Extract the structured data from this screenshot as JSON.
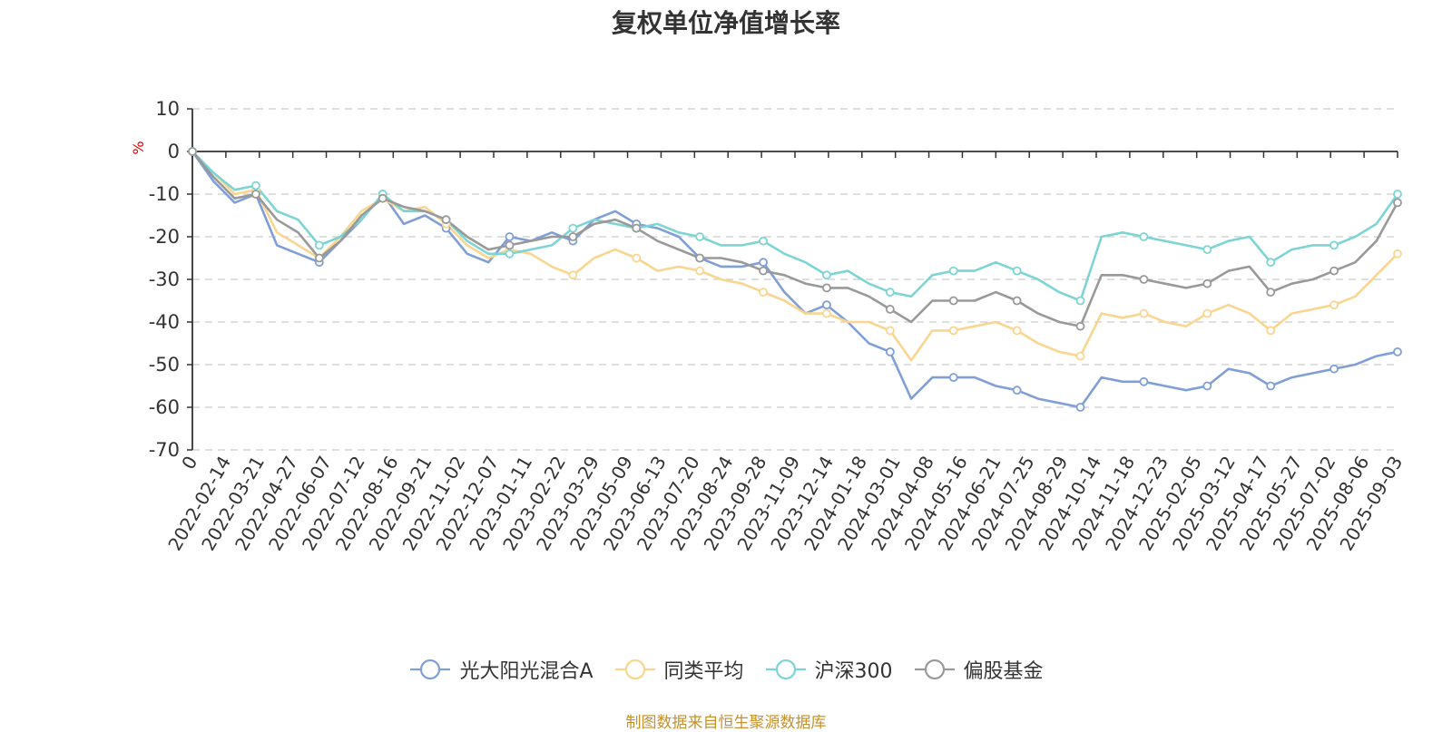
{
  "title": "复权单位净值增长率",
  "source_note": "制图数据来自恒生聚源数据库",
  "colors": {
    "fund": "#7f9fd6",
    "peer_avg": "#f9d58f",
    "hs300": "#7dd4d4",
    "equity": "#999999",
    "axis": "#333333",
    "grid": "#cccccc",
    "unit": "#e00000",
    "source": "#c8902a"
  },
  "chart_data": {
    "type": "line",
    "title": "复权单位净值增长率",
    "ylabel": "%",
    "ylim": [
      -70,
      10
    ],
    "y_ticks": [
      "10",
      "0",
      "-10",
      "-20",
      "-30",
      "-40",
      "-50",
      "-60",
      "-70"
    ],
    "x_ticks": [
      "0",
      "2022-02-14",
      "2022-03-21",
      "2022-04-27",
      "2022-06-07",
      "2022-07-12",
      "2022-08-16",
      "2022-09-21",
      "2022-11-02",
      "2022-12-07",
      "2023-01-11",
      "2023-02-22",
      "2023-03-29",
      "2023-05-09",
      "2023-06-13",
      "2023-07-20",
      "2023-08-24",
      "2023-09-28",
      "2023-11-09",
      "2023-12-14",
      "2024-01-18",
      "2024-03-01",
      "2024-04-08",
      "2024-05-16",
      "2024-06-21",
      "2024-07-25",
      "2024-08-29",
      "2024-10-14",
      "2024-11-18",
      "2024-12-23",
      "2025-02-05",
      "2025-03-12",
      "2025-04-17",
      "2025-05-27",
      "2025-07-02",
      "2025-08-06",
      "2025-09-03"
    ],
    "grid": true,
    "legend_position": "bottom-center",
    "series": [
      {
        "name": "光大阳光混合A",
        "color": "#7f9fd6",
        "values": [
          0,
          -7,
          -12,
          -10,
          -22,
          -24,
          -26,
          -21,
          -16,
          -10,
          -17,
          -15,
          -18,
          -24,
          -26,
          -20,
          -21,
          -19,
          -21,
          -16,
          -14,
          -17,
          -18,
          -20,
          -25,
          -27,
          -27,
          -26,
          -33,
          -38,
          -36,
          -40,
          -45,
          -47,
          -58,
          -53,
          -53,
          -53,
          -55,
          -56,
          -58,
          -59,
          -60,
          -53,
          -54,
          -54,
          -55,
          -56,
          -55,
          -51,
          -52,
          -55,
          -53,
          -52,
          -51,
          -50,
          -48,
          -47
        ]
      },
      {
        "name": "同类平均",
        "color": "#f9d58f",
        "values": [
          0,
          -5,
          -10,
          -9,
          -19,
          -22,
          -25,
          -20,
          -14,
          -11,
          -14,
          -13,
          -17,
          -22,
          -25,
          -23,
          -24,
          -27,
          -29,
          -25,
          -23,
          -25,
          -28,
          -27,
          -28,
          -30,
          -31,
          -33,
          -35,
          -38,
          -38,
          -40,
          -40,
          -42,
          -49,
          -42,
          -42,
          -41,
          -40,
          -42,
          -45,
          -47,
          -48,
          -38,
          -39,
          -38,
          -40,
          -41,
          -38,
          -36,
          -38,
          -42,
          -38,
          -37,
          -36,
          -34,
          -29,
          -24
        ]
      },
      {
        "name": "沪深300",
        "color": "#7dd4d4",
        "values": [
          0,
          -5,
          -9,
          -8,
          -14,
          -16,
          -22,
          -20,
          -16,
          -10,
          -14,
          -14,
          -16,
          -21,
          -24,
          -24,
          -23,
          -22,
          -18,
          -16,
          -17,
          -18,
          -17,
          -19,
          -20,
          -22,
          -22,
          -21,
          -24,
          -26,
          -29,
          -28,
          -31,
          -33,
          -34,
          -29,
          -28,
          -28,
          -26,
          -28,
          -30,
          -33,
          -35,
          -20,
          -19,
          -20,
          -21,
          -22,
          -23,
          -21,
          -20,
          -26,
          -23,
          -22,
          -22,
          -20,
          -17,
          -10
        ]
      },
      {
        "name": "偏股基金",
        "color": "#999999",
        "values": [
          0,
          -6,
          -11,
          -10,
          -16,
          -19,
          -25,
          -21,
          -15,
          -11,
          -13,
          -14,
          -16,
          -20,
          -23,
          -22,
          -21,
          -20,
          -20,
          -17,
          -16,
          -18,
          -21,
          -23,
          -25,
          -25,
          -26,
          -28,
          -29,
          -31,
          -32,
          -32,
          -34,
          -37,
          -40,
          -35,
          -35,
          -35,
          -33,
          -35,
          -38,
          -40,
          -41,
          -29,
          -29,
          -30,
          -31,
          -32,
          -31,
          -28,
          -27,
          -33,
          -31,
          -30,
          -28,
          -26,
          -21,
          -12
        ]
      }
    ]
  }
}
